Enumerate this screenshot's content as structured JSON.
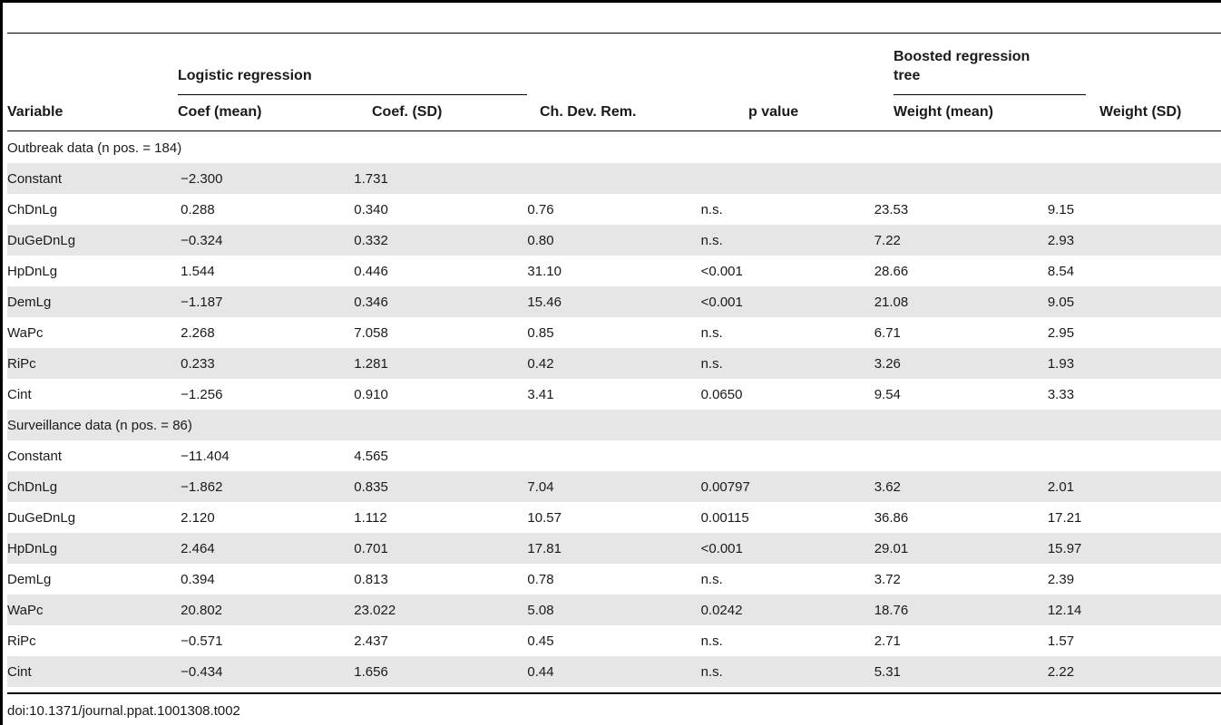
{
  "table": {
    "group_headers": {
      "logistic": "Logistic regression",
      "brt_line1": "Boosted regression",
      "brt_line2": "tree"
    },
    "columns": [
      "Variable",
      "Coef (mean)",
      "Coef. (SD)",
      "Ch. Dev. Rem.",
      "p value",
      "Weight (mean)",
      "Weight (SD)"
    ],
    "rows": [
      {
        "type": "section",
        "cells": [
          "Outbreak data (n pos. = 184)"
        ]
      },
      {
        "type": "data",
        "cells": [
          "Constant",
          "−2.300",
          "1.731",
          "",
          "",
          "",
          ""
        ]
      },
      {
        "type": "data",
        "cells": [
          "ChDnLg",
          "0.288",
          "0.340",
          "0.76",
          "n.s.",
          "23.53",
          "9.15"
        ]
      },
      {
        "type": "data",
        "cells": [
          "DuGeDnLg",
          "−0.324",
          "0.332",
          "0.80",
          "n.s.",
          "7.22",
          "2.93"
        ]
      },
      {
        "type": "data",
        "cells": [
          "HpDnLg",
          "1.544",
          "0.446",
          "31.10",
          "<0.001",
          "28.66",
          "8.54"
        ]
      },
      {
        "type": "data",
        "cells": [
          "DemLg",
          "−1.187",
          "0.346",
          "15.46",
          "<0.001",
          "21.08",
          "9.05"
        ]
      },
      {
        "type": "data",
        "cells": [
          "WaPc",
          "2.268",
          "7.058",
          "0.85",
          "n.s.",
          "6.71",
          "2.95"
        ]
      },
      {
        "type": "data",
        "cells": [
          "RiPc",
          "0.233",
          "1.281",
          "0.42",
          "n.s.",
          "3.26",
          "1.93"
        ]
      },
      {
        "type": "data",
        "cells": [
          "Cint",
          "−1.256",
          "0.910",
          "3.41",
          "0.0650",
          "9.54",
          "3.33"
        ]
      },
      {
        "type": "section",
        "cells": [
          "Surveillance data (n pos. = 86)"
        ]
      },
      {
        "type": "data",
        "cells": [
          "Constant",
          "−11.404",
          "4.565",
          "",
          "",
          "",
          ""
        ]
      },
      {
        "type": "data",
        "cells": [
          "ChDnLg",
          "−1.862",
          "0.835",
          "7.04",
          "0.00797",
          "3.62",
          "2.01"
        ]
      },
      {
        "type": "data",
        "cells": [
          "DuGeDnLg",
          "2.120",
          "1.112",
          "10.57",
          "0.00115",
          "36.86",
          "17.21"
        ]
      },
      {
        "type": "data",
        "cells": [
          "HpDnLg",
          "2.464",
          "0.701",
          "17.81",
          "<0.001",
          "29.01",
          "15.97"
        ]
      },
      {
        "type": "data",
        "cells": [
          "DemLg",
          "0.394",
          "0.813",
          "0.78",
          "n.s.",
          "3.72",
          "2.39"
        ]
      },
      {
        "type": "data",
        "cells": [
          "WaPc",
          "20.802",
          "23.022",
          "5.08",
          "0.0242",
          "18.76",
          "12.14"
        ]
      },
      {
        "type": "data",
        "cells": [
          "RiPc",
          "−0.571",
          "2.437",
          "0.45",
          "n.s.",
          "2.71",
          "1.57"
        ]
      },
      {
        "type": "data",
        "cells": [
          "Cint",
          "−0.434",
          "1.656",
          "0.44",
          "n.s.",
          "5.31",
          "2.22"
        ]
      }
    ]
  },
  "footer": {
    "doi": "doi:10.1371/journal.ppat.1001308.t002"
  }
}
